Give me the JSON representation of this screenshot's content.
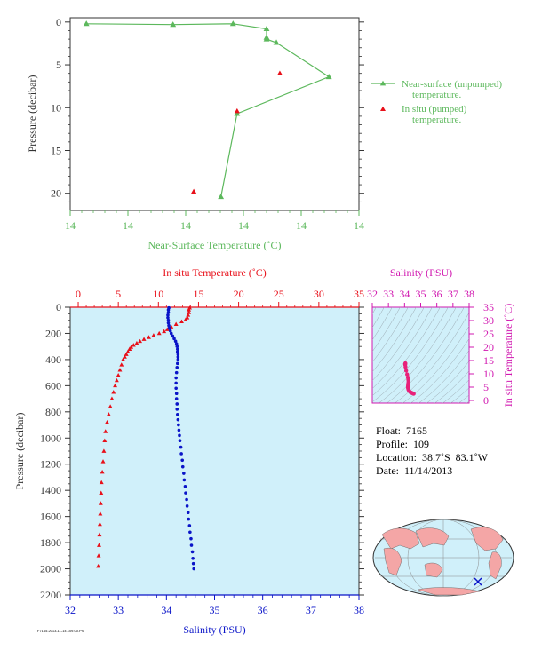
{
  "colors": {
    "green": "#5cb85c",
    "red": "#e8101a",
    "blue": "#0a14c8",
    "magenta": "#d118b0",
    "pink": "#e8207a",
    "axis_dark": "#333333",
    "plot_bg": "#d0f0fa",
    "land": "#f4a6a6",
    "ocean": "#d0f0fa"
  },
  "chart_data": [
    {
      "id": "near-surface",
      "type": "line",
      "xlabel": "Near-Surface Temperature (˚C)",
      "ylabel": "Pressure (decibar)",
      "x_tick_labels": [
        "14",
        "14",
        "14",
        "14",
        "14",
        "14"
      ],
      "y_ticks": [
        0,
        5,
        10,
        15,
        20
      ],
      "ylim": [
        -0.5,
        22
      ],
      "y_inverted": true,
      "xlim": [
        13.995,
        14.045
      ],
      "legend_position": "right",
      "series": [
        {
          "name": "Near-surface (unpumped) temperature.",
          "marker": "triangle",
          "line": true,
          "points": [
            {
              "t": 13.9978,
              "p": 0.2
            },
            {
              "t": 14.0128,
              "p": 0.3
            },
            {
              "t": 14.0232,
              "p": 0.2
            },
            {
              "t": 14.029,
              "p": 0.8
            },
            {
              "t": 14.029,
              "p": 1.8
            },
            {
              "t": 14.029,
              "p": 2.0
            },
            {
              "t": 14.0307,
              "p": 2.4
            },
            {
              "t": 14.0398,
              "p": 6.4
            },
            {
              "t": 14.0239,
              "p": 10.7
            },
            {
              "t": 14.0211,
              "p": 20.4
            }
          ]
        },
        {
          "name": "In situ (pumped) temperature.",
          "marker": "triangle",
          "line": false,
          "points": [
            {
              "t": 14.0313,
              "p": 6.0
            },
            {
              "t": 14.0239,
              "p": 10.4
            },
            {
              "t": 14.0164,
              "p": 19.8
            }
          ]
        }
      ]
    },
    {
      "id": "profile",
      "type": "scatter",
      "top_axis_label": "In situ Temperature (˚C)",
      "bottom_axis_label": "Salinity (PSU)",
      "ylabel": "Pressure (decibar)",
      "temperature_ticks": [
        0,
        5,
        10,
        15,
        20,
        25,
        30,
        35
      ],
      "salinity_ticks": [
        32,
        33,
        34,
        35,
        36,
        37,
        38
      ],
      "pressure_ticks": [
        0,
        200,
        400,
        600,
        800,
        1000,
        1200,
        1400,
        1600,
        1800,
        2000,
        2200
      ],
      "temperature_range": [
        -1,
        35
      ],
      "salinity_range": [
        32,
        38
      ],
      "pressure_range": [
        0,
        2200
      ],
      "series": [
        {
          "name": "In situ Temperature (˚C)",
          "marker": "triangle",
          "points": [
            [
              13.9,
              5
            ],
            [
              13.8,
              20
            ],
            [
              13.8,
              40
            ],
            [
              13.7,
              60
            ],
            [
              13.6,
              80
            ],
            [
              13.4,
              95
            ],
            [
              12.9,
              110
            ],
            [
              12.2,
              130
            ],
            [
              11.6,
              150
            ],
            [
              11.1,
              170
            ],
            [
              10.7,
              185
            ],
            [
              10.1,
              200
            ],
            [
              9.4,
              215
            ],
            [
              8.8,
              230
            ],
            [
              8.2,
              245
            ],
            [
              7.7,
              260
            ],
            [
              7.3,
              275
            ],
            [
              6.9,
              290
            ],
            [
              6.6,
              305
            ],
            [
              6.4,
              320
            ],
            [
              6.2,
              340
            ],
            [
              6.0,
              360
            ],
            [
              5.8,
              380
            ],
            [
              5.6,
              400
            ],
            [
              5.4,
              440
            ],
            [
              5.2,
              480
            ],
            [
              5.0,
              520
            ],
            [
              4.8,
              560
            ],
            [
              4.6,
              600
            ],
            [
              4.4,
              650
            ],
            [
              4.2,
              700
            ],
            [
              4.0,
              760
            ],
            [
              3.8,
              820
            ],
            [
              3.6,
              880
            ],
            [
              3.4,
              950
            ],
            [
              3.3,
              1020
            ],
            [
              3.2,
              1100
            ],
            [
              3.1,
              1180
            ],
            [
              3.0,
              1260
            ],
            [
              2.9,
              1340
            ],
            [
              2.85,
              1420
            ],
            [
              2.8,
              1500
            ],
            [
              2.75,
              1580
            ],
            [
              2.7,
              1660
            ],
            [
              2.65,
              1740
            ],
            [
              2.6,
              1820
            ],
            [
              2.55,
              1900
            ],
            [
              2.5,
              1980
            ]
          ]
        },
        {
          "name": "Salinity (PSU)",
          "marker": "dot",
          "points": [
            [
              34.05,
              5
            ],
            [
              34.04,
              20
            ],
            [
              34.04,
              40
            ],
            [
              34.03,
              60
            ],
            [
              34.03,
              80
            ],
            [
              34.04,
              100
            ],
            [
              34.04,
              120
            ],
            [
              34.05,
              140
            ],
            [
              34.06,
              160
            ],
            [
              34.08,
              180
            ],
            [
              34.1,
              200
            ],
            [
              34.13,
              220
            ],
            [
              34.16,
              240
            ],
            [
              34.19,
              260
            ],
            [
              34.21,
              280
            ],
            [
              34.22,
              300
            ],
            [
              34.23,
              320
            ],
            [
              34.23,
              340
            ],
            [
              34.24,
              360
            ],
            [
              34.24,
              380
            ],
            [
              34.24,
              400
            ],
            [
              34.23,
              430
            ],
            [
              34.22,
              460
            ],
            [
              34.21,
              500
            ],
            [
              34.2,
              540
            ],
            [
              34.2,
              580
            ],
            [
              34.2,
              620
            ],
            [
              34.21,
              660
            ],
            [
              34.21,
              700
            ],
            [
              34.22,
              740
            ],
            [
              34.22,
              780
            ],
            [
              34.23,
              820
            ],
            [
              34.24,
              860
            ],
            [
              34.25,
              900
            ],
            [
              34.26,
              940
            ],
            [
              34.27,
              980
            ],
            [
              34.28,
              1020
            ],
            [
              34.3,
              1070
            ],
            [
              34.31,
              1120
            ],
            [
              34.33,
              1170
            ],
            [
              34.34,
              1220
            ],
            [
              34.36,
              1270
            ],
            [
              34.37,
              1320
            ],
            [
              34.39,
              1370
            ],
            [
              34.4,
              1420
            ],
            [
              34.42,
              1470
            ],
            [
              34.43,
              1520
            ],
            [
              34.45,
              1570
            ],
            [
              34.46,
              1620
            ],
            [
              34.48,
              1670
            ],
            [
              34.49,
              1720
            ],
            [
              34.51,
              1770
            ],
            [
              34.52,
              1820
            ],
            [
              34.54,
              1870
            ],
            [
              34.55,
              1920
            ],
            [
              34.56,
              1960
            ],
            [
              34.57,
              2000
            ]
          ]
        }
      ]
    },
    {
      "id": "ts-diagram",
      "type": "scatter",
      "top_axis_label": "Salinity (PSU)",
      "right_axis_label": "In situ Temperature (˚C)",
      "salinity_ticks": [
        32,
        33,
        34,
        35,
        36,
        37,
        38
      ],
      "temperature_ticks": [
        0,
        5,
        10,
        15,
        20,
        25,
        30,
        35
      ],
      "salinity_range": [
        32,
        38
      ],
      "temperature_range": [
        -1,
        35
      ],
      "points": [
        [
          34.05,
          14.0
        ],
        [
          34.05,
          13.8
        ],
        [
          34.04,
          13.4
        ],
        [
          34.06,
          12.6
        ],
        [
          34.1,
          11.2
        ],
        [
          34.16,
          9.8
        ],
        [
          34.21,
          8.6
        ],
        [
          34.23,
          7.8
        ],
        [
          34.24,
          7.0
        ],
        [
          34.23,
          6.4
        ],
        [
          34.22,
          5.8
        ],
        [
          34.21,
          5.3
        ],
        [
          34.21,
          4.9
        ],
        [
          34.22,
          4.5
        ],
        [
          34.24,
          4.1
        ],
        [
          34.26,
          3.8
        ],
        [
          34.3,
          3.5
        ],
        [
          34.34,
          3.2
        ],
        [
          34.38,
          3.0
        ],
        [
          34.42,
          2.9
        ],
        [
          34.46,
          2.8
        ],
        [
          34.5,
          2.7
        ],
        [
          34.54,
          2.6
        ],
        [
          34.57,
          2.5
        ]
      ]
    }
  ],
  "float_info": {
    "float_label": "Float:",
    "float_value": "7165",
    "profile_label": "Profile:",
    "profile_value": "109",
    "location_label": "Location:",
    "location_value": "38.7˚S  83.1˚W",
    "date_label": "Date:",
    "date_value": "11/14/2013"
  },
  "map": {
    "marker_lat": -38.7,
    "marker_lon": -83.1
  },
  "footer_text": "F7165.2013-11-14.109.00.PS"
}
